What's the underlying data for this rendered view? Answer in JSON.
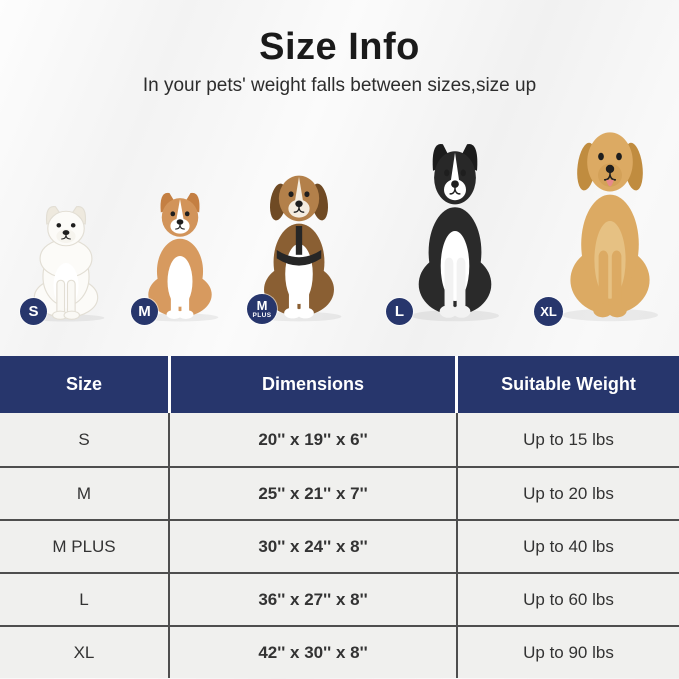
{
  "page": {
    "title": "Size Info",
    "subtitle": "In your pets' weight falls between sizes,size up"
  },
  "colors": {
    "navy": "#27366c",
    "row_bg": "#f0f0ee",
    "row_divider": "#4e4e4e",
    "header_text": "#ffffff",
    "body_text": "#333333"
  },
  "dogs": [
    {
      "name": "pomeranian",
      "breed": "Pomeranian",
      "ears": "upright",
      "fluffy": true,
      "badge": {
        "label": "S",
        "sub": ""
      },
      "colors": {
        "body": "#fcfbf8",
        "head": "#fcfbf8",
        "ear": "#eee9de",
        "chest": "#ffffff",
        "legs": "#faf9f5",
        "muzzle": "#f6f4ee",
        "blaze": "",
        "outline": "#e2ded4"
      }
    },
    {
      "name": "corgi",
      "breed": "Corgi",
      "ears": "upright",
      "fluffy": false,
      "badge": {
        "label": "M",
        "sub": ""
      },
      "colors": {
        "body": "#d79a5f",
        "head": "#d2945a",
        "ear": "#c47f42",
        "chest": "#ffffff",
        "legs": "#ffffff",
        "muzzle": "#ffffff",
        "blaze": "#ffffff",
        "outline": ""
      }
    },
    {
      "name": "beagle",
      "breed": "Beagle",
      "ears": "floppy",
      "fluffy": false,
      "harness": true,
      "badge": {
        "label": "M",
        "sub": "PLUS"
      },
      "colors": {
        "body": "#8a5f33",
        "head": "#b3804a",
        "ear": "#6f4a24",
        "chest": "#ffffff",
        "legs": "#ffffff",
        "muzzle": "#f4ecdf",
        "blaze": "#f4ecdf",
        "outline": ""
      }
    },
    {
      "name": "border-collie",
      "breed": "Border Collie",
      "ears": "upright",
      "fluffy": false,
      "badge": {
        "label": "L",
        "sub": ""
      },
      "colors": {
        "body": "#2a2a2a",
        "head": "#282828",
        "ear": "#1c1c1c",
        "chest": "#ffffff",
        "legs": "#f2f2f2",
        "muzzle": "#ffffff",
        "blaze": "#ffffff",
        "outline": ""
      }
    },
    {
      "name": "golden-retriever",
      "breed": "Golden Retriever",
      "ears": "floppy",
      "fluffy": false,
      "tongue": true,
      "badge": {
        "label": "XL",
        "sub": ""
      },
      "colors": {
        "body": "#dcaa63",
        "head": "#dcaa63",
        "ear": "#c08c3f",
        "chest": "#e6c183",
        "legs": "#dcaa63",
        "muzzle": "#d4a158",
        "blaze": "",
        "outline": ""
      }
    }
  ],
  "size_table": {
    "columns": [
      "Size",
      "Dimensions",
      "Suitable Weight"
    ],
    "rows": [
      {
        "size": "S",
        "dimensions": "20'' x 19'' x 6''",
        "weight": "Up to 15 lbs"
      },
      {
        "size": "M",
        "dimensions": "25'' x 21'' x 7''",
        "weight": "Up to 20 lbs"
      },
      {
        "size": "M PLUS",
        "dimensions": "30'' x 24'' x 8''",
        "weight": "Up to 40 lbs"
      },
      {
        "size": "L",
        "dimensions": "36'' x 27'' x 8''",
        "weight": "Up to 60 lbs"
      },
      {
        "size": "XL",
        "dimensions": "42'' x 30'' x 8''",
        "weight": "Up to 90 lbs"
      }
    ]
  }
}
